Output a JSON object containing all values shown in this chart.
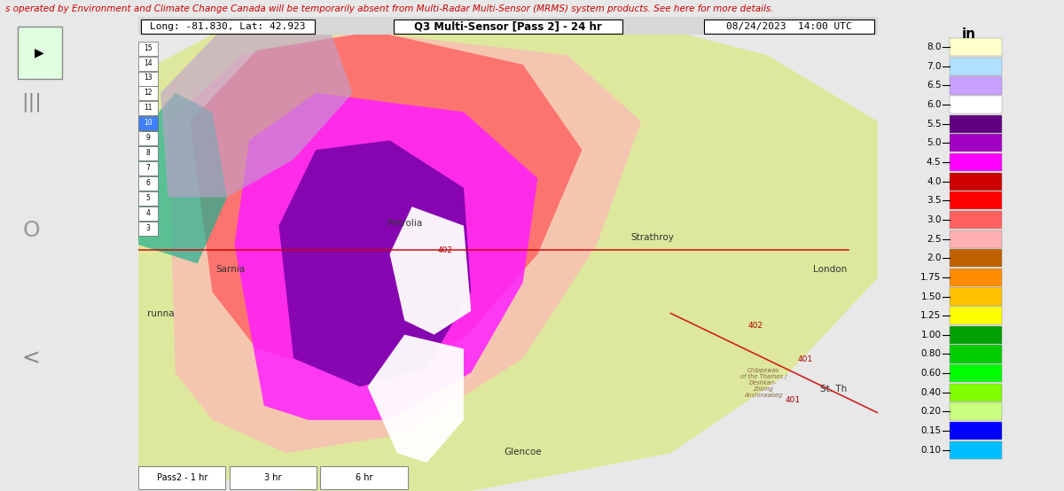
{
  "title": "Q3 Multi-Sensor [Pass 2] - 24 hr",
  "top_left_label": "Long: -81.830, Lat: 42.923",
  "top_right_label": "08/24/2023  14:00 UTC",
  "colorbar_title": "in",
  "colorbar_entries": [
    {
      "label": "8.0",
      "color": "#FFFFCC"
    },
    {
      "label": "7.0",
      "color": "#B0E0FF"
    },
    {
      "label": "6.5",
      "color": "#C8A0FF"
    },
    {
      "label": "6.0",
      "color": "#FFFFFF"
    },
    {
      "label": "5.5",
      "color": "#600080"
    },
    {
      "label": "5.0",
      "color": "#A000C0"
    },
    {
      "label": "4.5",
      "color": "#FF00FF"
    },
    {
      "label": "4.0",
      "color": "#CC0000"
    },
    {
      "label": "3.5",
      "color": "#FF0000"
    },
    {
      "label": "3.0",
      "color": "#FF6060"
    },
    {
      "label": "2.5",
      "color": "#FFB0B0"
    },
    {
      "label": "2.0",
      "color": "#C06000"
    },
    {
      "label": "1.75",
      "color": "#FF8C00"
    },
    {
      "label": "1.50",
      "color": "#FFC000"
    },
    {
      "label": "1.25",
      "color": "#FFFF00"
    },
    {
      "label": "1.00",
      "color": "#00A000"
    },
    {
      "label": "0.80",
      "color": "#00CC00"
    },
    {
      "label": "0.60",
      "color": "#00FF00"
    },
    {
      "label": "0.40",
      "color": "#80FF00"
    },
    {
      "label": "0.20",
      "color": "#C8FF80"
    },
    {
      "label": "0.15",
      "color": "#0000FF"
    },
    {
      "label": "0.10",
      "color": "#00BFFF"
    }
  ],
  "scale_numbers": [
    "15",
    "14",
    "13",
    "12",
    "11",
    "10",
    "9",
    "8",
    "7",
    "6",
    "5",
    "4",
    "3"
  ],
  "bottom_buttons": [
    "Pass2 - 1 hr",
    "3 hr",
    "6 hr"
  ],
  "header_text": "s operated by Environment and Climate Change Canada will be temporarily absent from Multi-Radar Multi-Sensor (MRMS) system products. See here for more details.",
  "bg_color": "#E8E8E8",
  "map_bg": "#C8D8A8",
  "header_color": "#CC0000",
  "header_bg": "#F0F0F0",
  "figsize": [
    12.0,
    5.54
  ],
  "dpi": 100
}
